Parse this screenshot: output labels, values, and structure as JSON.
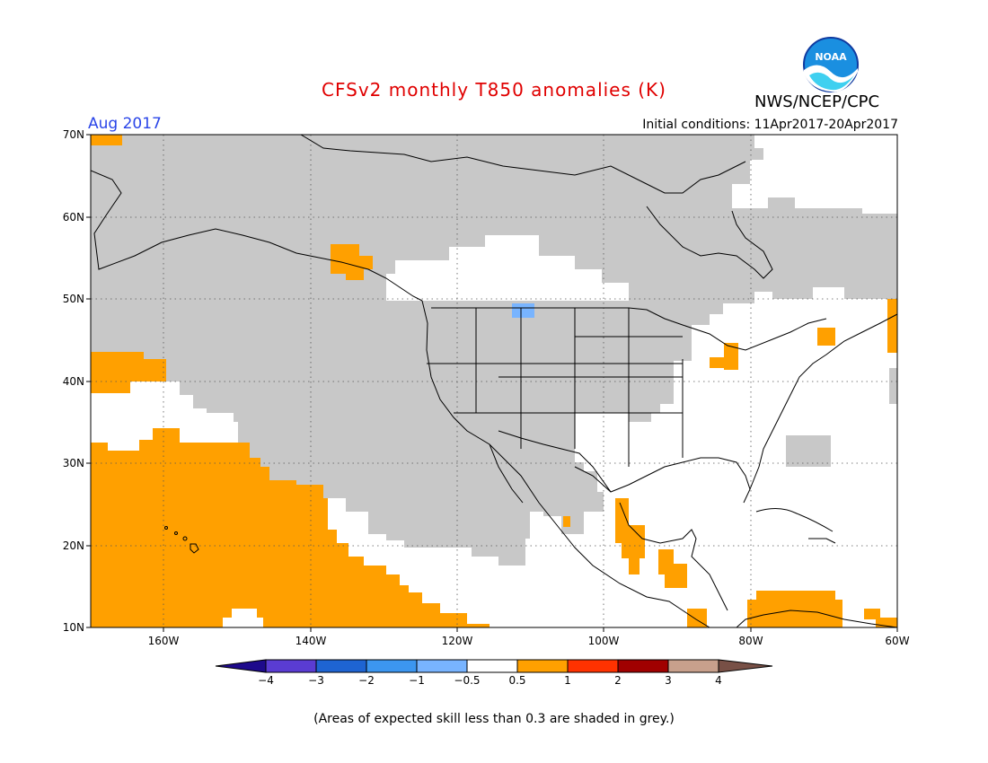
{
  "header": {
    "title": "CFSv2 monthly T850 anomalies (K)",
    "organization": "NWS/NCEP/CPC",
    "logo_text": "NOAA",
    "period": "Aug 2017",
    "initial_conditions": "Initial conditions: 11Apr2017-20Apr2017"
  },
  "map": {
    "lat_labels": [
      "70N",
      "60N",
      "50N",
      "40N",
      "30N",
      "20N",
      "10N"
    ],
    "lon_labels": [
      "160W",
      "140W",
      "120W",
      "100W",
      "80W",
      "60W"
    ],
    "lat_range": [
      10,
      70
    ],
    "lon_range": [
      -170,
      -60
    ],
    "grid": "dotted",
    "colors": {
      "skill_grey": "#c8c8c8",
      "warm_0_5_1": "#ffa000",
      "cool_neg_0_5_neg_1": "#78b4ff",
      "land_outline": "#000000"
    }
  },
  "colorbar": {
    "labels": [
      "−4",
      "−3",
      "−2",
      "−1",
      "−0.5",
      "0.5",
      "1",
      "2",
      "3",
      "4"
    ],
    "colors": [
      "#1e0a8c",
      "#5a3cd2",
      "#1e64d2",
      "#3c96f0",
      "#78b4ff",
      "#ffffff",
      "#ffa000",
      "#ff3200",
      "#a00000",
      "#c8a08c",
      "#785046"
    ]
  },
  "footnote": "(Areas of expected skill less than 0.3 are shaded in grey.)"
}
